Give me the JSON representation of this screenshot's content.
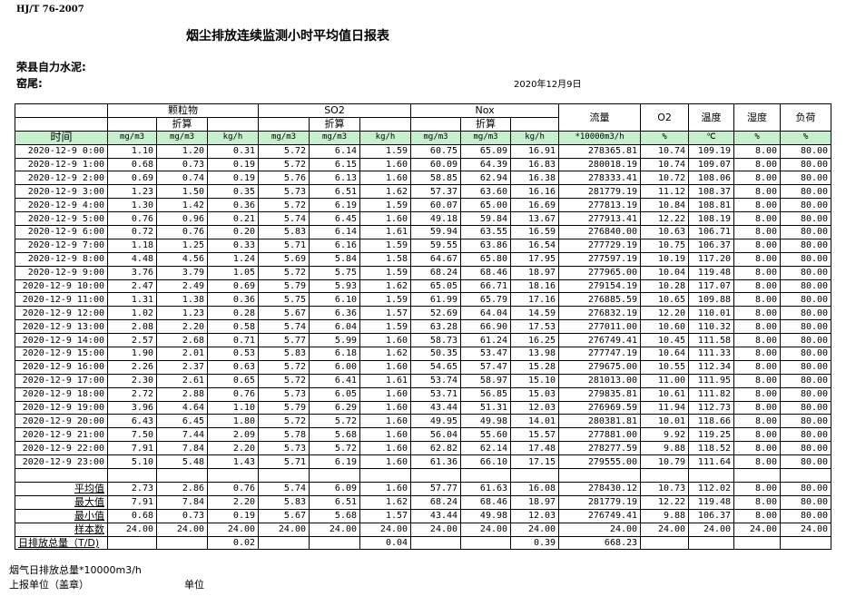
{
  "header": {
    "standard": "HJ/T  76-2007",
    "title": "烟尘排放连续监测小时平均值日报表",
    "company": "荣县自力水泥:",
    "kiln": "窑尾:",
    "date": "2020年12月9日"
  },
  "columns": {
    "time": "时间",
    "particulate": "颗粒物",
    "so2": "SO2",
    "nox": "Nox",
    "converted": "折算",
    "flow": "流量",
    "o2": "O2",
    "temp": "温度",
    "humidity": "湿度",
    "load": "负荷",
    "units": [
      "mg/m3",
      "mg/m3",
      "kg/h",
      "mg/m3",
      "mg/m3",
      "kg/h",
      "mg/m3",
      "mg/m3",
      "kg/h",
      "*10000m3/h",
      "%",
      "℃",
      "%",
      "%"
    ]
  },
  "rows": [
    [
      "2020-12-9 0:00",
      "1.10",
      "1.20",
      "0.31",
      "5.72",
      "6.14",
      "1.59",
      "60.75",
      "65.09",
      "16.91",
      "278365.81",
      "10.74",
      "109.19",
      "8.00",
      "80.00"
    ],
    [
      "2020-12-9 1:00",
      "0.68",
      "0.73",
      "0.19",
      "5.72",
      "6.15",
      "1.60",
      "60.09",
      "64.39",
      "16.83",
      "280018.19",
      "10.74",
      "109.07",
      "8.00",
      "80.00"
    ],
    [
      "2020-12-9 2:00",
      "0.69",
      "0.74",
      "0.19",
      "5.76",
      "6.13",
      "1.60",
      "58.85",
      "62.94",
      "16.38",
      "278333.41",
      "10.72",
      "108.06",
      "8.00",
      "80.00"
    ],
    [
      "2020-12-9 3:00",
      "1.23",
      "1.50",
      "0.35",
      "5.73",
      "6.51",
      "1.62",
      "57.37",
      "63.60",
      "16.16",
      "281779.19",
      "11.12",
      "108.37",
      "8.00",
      "80.00"
    ],
    [
      "2020-12-9 4:00",
      "1.30",
      "1.42",
      "0.36",
      "5.72",
      "6.19",
      "1.59",
      "60.07",
      "65.00",
      "16.69",
      "277813.19",
      "10.84",
      "108.81",
      "8.00",
      "80.00"
    ],
    [
      "2020-12-9 5:00",
      "0.76",
      "0.96",
      "0.21",
      "5.74",
      "6.45",
      "1.60",
      "49.18",
      "59.84",
      "13.67",
      "277913.41",
      "12.22",
      "108.19",
      "8.00",
      "80.00"
    ],
    [
      "2020-12-9 6:00",
      "0.72",
      "0.76",
      "0.20",
      "5.83",
      "6.14",
      "1.61",
      "59.94",
      "63.55",
      "16.59",
      "276840.00",
      "10.63",
      "106.71",
      "8.00",
      "80.00"
    ],
    [
      "2020-12-9 7:00",
      "1.18",
      "1.25",
      "0.33",
      "5.71",
      "6.16",
      "1.59",
      "59.55",
      "63.86",
      "16.54",
      "277729.19",
      "10.75",
      "106.37",
      "8.00",
      "80.00"
    ],
    [
      "2020-12-9 8:00",
      "4.48",
      "4.56",
      "1.24",
      "5.69",
      "5.84",
      "1.58",
      "64.67",
      "65.80",
      "17.95",
      "277597.19",
      "10.19",
      "117.20",
      "8.00",
      "80.00"
    ],
    [
      "2020-12-9 9:00",
      "3.76",
      "3.79",
      "1.05",
      "5.72",
      "5.75",
      "1.59",
      "68.24",
      "68.46",
      "18.97",
      "277965.00",
      "10.04",
      "119.48",
      "8.00",
      "80.00"
    ],
    [
      "2020-12-9 10:00",
      "2.47",
      "2.49",
      "0.69",
      "5.79",
      "5.93",
      "1.62",
      "65.05",
      "66.71",
      "18.16",
      "279154.19",
      "10.28",
      "117.07",
      "8.00",
      "80.00"
    ],
    [
      "2020-12-9 11:00",
      "1.31",
      "1.38",
      "0.36",
      "5.75",
      "6.10",
      "1.59",
      "61.99",
      "65.79",
      "17.16",
      "276885.59",
      "10.65",
      "109.88",
      "8.00",
      "80.00"
    ],
    [
      "2020-12-9 12:00",
      "1.02",
      "1.23",
      "0.28",
      "5.67",
      "6.36",
      "1.57",
      "52.69",
      "64.04",
      "14.59",
      "276832.19",
      "12.20",
      "110.01",
      "8.00",
      "80.00"
    ],
    [
      "2020-12-9 13:00",
      "2.08",
      "2.20",
      "0.58",
      "5.74",
      "6.04",
      "1.59",
      "63.28",
      "66.90",
      "17.53",
      "277011.00",
      "10.60",
      "110.32",
      "8.00",
      "80.00"
    ],
    [
      "2020-12-9 14:00",
      "2.57",
      "2.68",
      "0.71",
      "5.77",
      "5.99",
      "1.60",
      "58.73",
      "61.24",
      "16.25",
      "276749.41",
      "10.45",
      "111.58",
      "8.00",
      "80.00"
    ],
    [
      "2020-12-9 15:00",
      "1.90",
      "2.01",
      "0.53",
      "5.83",
      "6.18",
      "1.62",
      "50.35",
      "53.47",
      "13.98",
      "277747.19",
      "10.64",
      "111.33",
      "8.00",
      "80.00"
    ],
    [
      "2020-12-9 16:00",
      "2.26",
      "2.37",
      "0.63",
      "5.72",
      "6.00",
      "1.60",
      "54.65",
      "57.47",
      "15.28",
      "279675.00",
      "10.55",
      "112.34",
      "8.00",
      "80.00"
    ],
    [
      "2020-12-9 17:00",
      "2.30",
      "2.61",
      "0.65",
      "5.72",
      "6.41",
      "1.61",
      "53.74",
      "58.97",
      "15.10",
      "281013.00",
      "11.00",
      "111.95",
      "8.00",
      "80.00"
    ],
    [
      "2020-12-9 18:00",
      "2.72",
      "2.88",
      "0.76",
      "5.73",
      "6.05",
      "1.60",
      "53.71",
      "56.85",
      "15.03",
      "279835.81",
      "10.61",
      "111.82",
      "8.00",
      "80.00"
    ],
    [
      "2020-12-9 19:00",
      "3.96",
      "4.64",
      "1.10",
      "5.79",
      "6.29",
      "1.60",
      "43.44",
      "51.31",
      "12.03",
      "276969.59",
      "11.94",
      "112.73",
      "8.00",
      "80.00"
    ],
    [
      "2020-12-9 20:00",
      "6.43",
      "6.45",
      "1.80",
      "5.72",
      "5.72",
      "1.60",
      "49.95",
      "49.98",
      "14.01",
      "280381.81",
      "10.01",
      "118.66",
      "8.00",
      "80.00"
    ],
    [
      "2020-12-9 21:00",
      "7.50",
      "7.44",
      "2.09",
      "5.78",
      "5.68",
      "1.60",
      "56.04",
      "55.60",
      "15.57",
      "277881.00",
      "9.92",
      "119.25",
      "8.00",
      "80.00"
    ],
    [
      "2020-12-9 22:00",
      "7.91",
      "7.84",
      "2.20",
      "5.73",
      "5.72",
      "1.60",
      "62.82",
      "62.14",
      "17.48",
      "278277.59",
      "9.88",
      "118.52",
      "8.00",
      "80.00"
    ],
    [
      "2020-12-9 23:00",
      "5.10",
      "5.48",
      "1.43",
      "5.71",
      "6.19",
      "1.60",
      "61.36",
      "66.10",
      "17.15",
      "279555.00",
      "10.79",
      "111.64",
      "8.00",
      "80.00"
    ]
  ],
  "summary": [
    [
      "平均值",
      "2.73",
      "2.86",
      "0.76",
      "5.74",
      "6.09",
      "1.60",
      "57.77",
      "61.63",
      "16.08",
      "278430.12",
      "10.73",
      "112.02",
      "8.00",
      "80.00"
    ],
    [
      "最大值",
      "7.91",
      "7.84",
      "2.20",
      "5.83",
      "6.51",
      "1.62",
      "68.24",
      "68.46",
      "18.97",
      "281779.19",
      "12.22",
      "119.48",
      "8.00",
      "80.00"
    ],
    [
      "最小值",
      "0.68",
      "0.73",
      "0.19",
      "5.67",
      "5.68",
      "1.57",
      "43.44",
      "49.98",
      "12.03",
      "276749.41",
      "9.88",
      "106.37",
      "8.00",
      "80.00"
    ],
    [
      "样本数",
      "24.00",
      "24.00",
      "24.00",
      "24.00",
      "24.00",
      "24.00",
      "24.00",
      "24.00",
      "24.00",
      "24.00",
      "24.00",
      "24.00",
      "24.00",
      "24.00"
    ],
    [
      "日排放总量（T/D)",
      "",
      "",
      "0.02",
      "",
      "",
      "0.04",
      "",
      "",
      "0.39",
      "668.23",
      "",
      "",
      "",
      ""
    ]
  ],
  "footer": {
    "flue_gas_total": "烟气日排放总量*10000m3/h",
    "reporting_unit": "上报单位（盖章）",
    "unit": "单位"
  },
  "colors": {
    "unit_row_bg": "#c6efce"
  }
}
